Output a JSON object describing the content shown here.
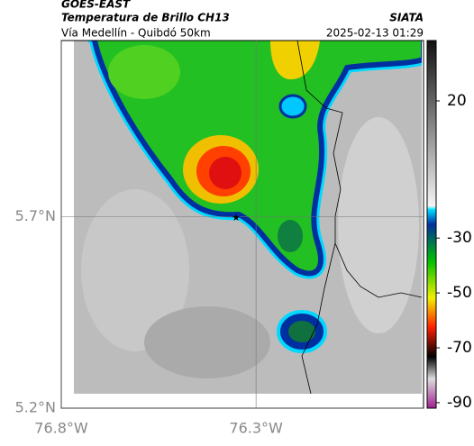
{
  "header": {
    "source": "GOES-EAST",
    "title": "Temperatura de Brillo CH13",
    "agency": "SIATA",
    "subtitle": "Vía Medellín - Quibdó 50km",
    "timestamp": "2025-02-13 01:29"
  },
  "map": {
    "xlim": [
      -76.8,
      -75.87
    ],
    "ylim": [
      5.2,
      6.16
    ],
    "xticks": [
      {
        "value": -76.8,
        "label": "76.8°W"
      },
      {
        "value": -76.3,
        "label": "76.3°W"
      }
    ],
    "yticks": [
      {
        "value": 5.2,
        "label": "5.2°N"
      },
      {
        "value": 5.7,
        "label": "5.7°N"
      }
    ],
    "colorbar": {
      "lim": [
        -92,
        42
      ],
      "ticks": [
        20,
        -30,
        -50,
        -70,
        -90
      ]
    }
  }
}
